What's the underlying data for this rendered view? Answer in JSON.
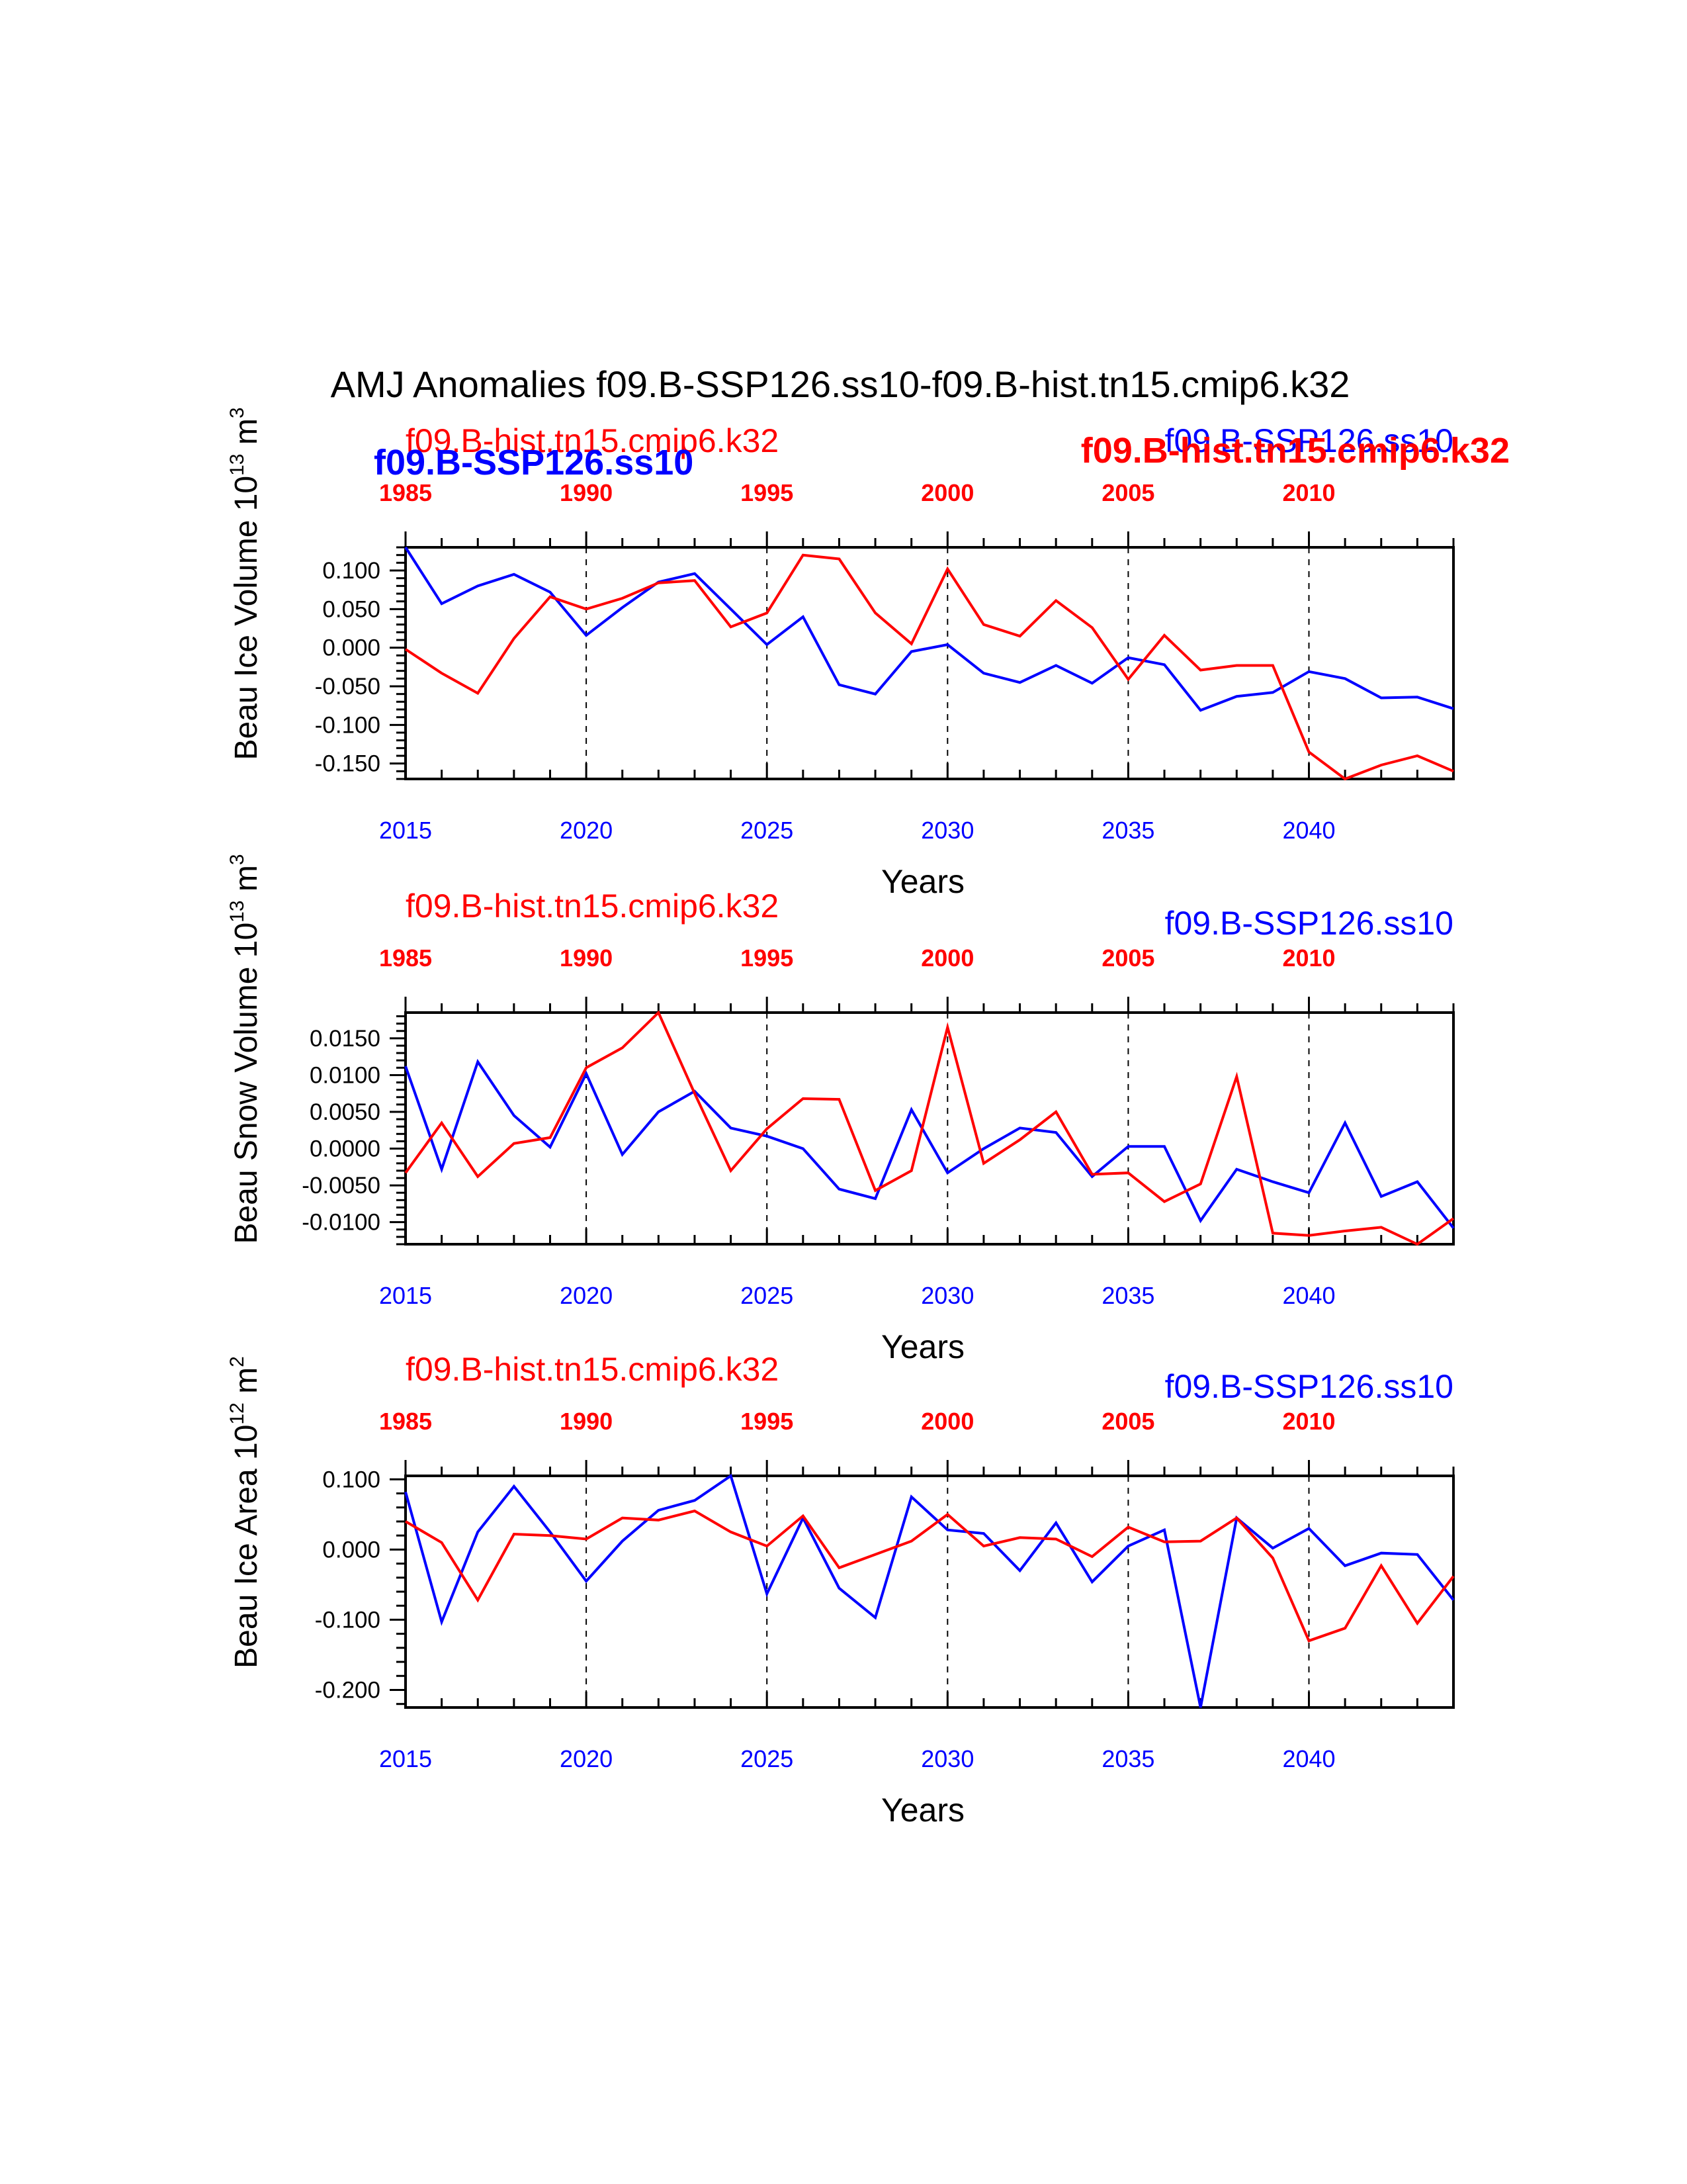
{
  "title": "AMJ Anomalies f09.B-SSP126.ss10-f09.B-hist.tn15.cmip6.k32",
  "colors": {
    "ssp": "#0000ff",
    "hist": "#ff0000",
    "axis": "#000000"
  },
  "xlabel": "Years",
  "bottom_axis": {
    "range": [
      2015,
      2044
    ],
    "ticks": [
      "2015",
      "2020",
      "2025",
      "2030",
      "2035",
      "2040"
    ]
  },
  "top_axis": {
    "ticks": [
      "1985",
      "1990",
      "1995",
      "2000",
      "2005",
      "2010"
    ]
  },
  "legend": {
    "hist": "f09.B-hist.tn15.cmip6.k32",
    "ssp": "f09.B-SSP126.ss10",
    "overlap_ssp": "f09.B-SSP126.ss10",
    "overlap_hist": "f09.B-hist.tn15.cmip6.k32"
  },
  "chart_data": [
    {
      "type": "line",
      "id": "ice-volume",
      "ylabel": "Beau Ice Volume 10",
      "ylabel_exp": "13",
      "ylabel_unit": "m",
      "ylabel_unit_exp": "3",
      "ylim": [
        -0.17,
        0.13
      ],
      "yticks": [
        "0.100",
        "0.050",
        "0.000",
        "-0.050",
        "-0.100",
        "-0.150"
      ],
      "ytick_values": [
        0.1,
        0.05,
        0.0,
        -0.05,
        -0.1,
        -0.15
      ],
      "series": [
        {
          "name": "f09.B-SSP126.ss10",
          "color": "#0000ff",
          "values": [
            0.13,
            0.057,
            0.08,
            0.095,
            0.072,
            0.016,
            0.052,
            0.085,
            0.096,
            0.05,
            0.004,
            0.04,
            -0.048,
            -0.06,
            -0.005,
            0.004,
            -0.033,
            -0.045,
            -0.023,
            -0.046,
            -0.013,
            -0.022,
            -0.081,
            -0.063,
            -0.058,
            -0.031,
            -0.04,
            -0.065,
            -0.064,
            -0.079
          ]
        },
        {
          "name": "f09.B-hist.tn15.cmip6.k32",
          "color": "#ff0000",
          "values": [
            -0.002,
            -0.033,
            -0.059,
            0.012,
            0.066,
            0.05,
            0.064,
            0.084,
            0.087,
            0.027,
            0.045,
            0.12,
            0.115,
            0.045,
            0.005,
            0.102,
            0.03,
            0.015,
            0.061,
            0.026,
            -0.041,
            0.016,
            -0.029,
            -0.023,
            -0.023,
            -0.135,
            -0.17,
            -0.152,
            -0.14,
            -0.16
          ]
        }
      ]
    },
    {
      "type": "line",
      "id": "snow-volume",
      "ylabel": "Beau Snow Volume 10",
      "ylabel_exp": "13",
      "ylabel_unit": "m",
      "ylabel_unit_exp": "3",
      "ylim": [
        -0.013,
        0.0185
      ],
      "yticks": [
        "0.0150",
        "0.0100",
        "0.0050",
        "0.0000",
        "-0.0050",
        "-0.0100"
      ],
      "ytick_values": [
        0.015,
        0.01,
        0.005,
        0.0,
        -0.005,
        -0.01
      ],
      "series": [
        {
          "name": "f09.B-SSP126.ss10",
          "color": "#0000ff",
          "values": [
            0.0112,
            -0.0028,
            0.0118,
            0.0045,
            0.0002,
            0.0102,
            -0.0008,
            0.005,
            0.0078,
            0.0028,
            0.0017,
            0.0,
            -0.0055,
            -0.0068,
            0.0053,
            -0.0033,
            0.0,
            0.0028,
            0.0022,
            -0.0038,
            0.0003,
            0.0003,
            -0.0098,
            -0.0028,
            -0.0045,
            -0.006,
            0.0035,
            -0.0065,
            -0.0045,
            -0.0108
          ]
        },
        {
          "name": "f09.B-hist.tn15.cmip6.k32",
          "color": "#ff0000",
          "values": [
            -0.0033,
            0.0035,
            -0.0038,
            0.0007,
            0.0015,
            0.011,
            0.0137,
            0.0185,
            0.0075,
            -0.003,
            0.0027,
            0.0068,
            0.0067,
            -0.0057,
            -0.003,
            0.0165,
            -0.002,
            0.0012,
            0.005,
            -0.0035,
            -0.0033,
            -0.0072,
            -0.0048,
            0.0098,
            -0.0115,
            -0.0118,
            -0.0112,
            -0.0107,
            -0.013,
            -0.0095
          ]
        }
      ]
    },
    {
      "type": "line",
      "id": "ice-area",
      "ylabel": "Beau Ice Area 10",
      "ylabel_exp": "12",
      "ylabel_unit": "m",
      "ylabel_unit_exp": "2",
      "ylim": [
        -0.225,
        0.105
      ],
      "yticks": [
        "0.100",
        "0.000",
        "-0.100",
        "-0.200"
      ],
      "ytick_values": [
        0.1,
        0.0,
        -0.1,
        -0.2
      ],
      "series": [
        {
          "name": "f09.B-SSP126.ss10",
          "color": "#0000ff",
          "values": [
            0.082,
            -0.103,
            0.025,
            0.09,
            0.025,
            -0.045,
            0.012,
            0.056,
            0.07,
            0.105,
            -0.063,
            0.045,
            -0.055,
            -0.097,
            0.075,
            0.028,
            0.023,
            -0.03,
            0.038,
            -0.046,
            0.005,
            0.028,
            -0.225,
            0.045,
            0.002,
            0.03,
            -0.023,
            -0.005,
            -0.007,
            -0.072
          ]
        },
        {
          "name": "f09.B-hist.tn15.cmip6.k32",
          "color": "#ff0000",
          "values": [
            0.04,
            0.01,
            -0.072,
            0.022,
            0.02,
            0.015,
            0.045,
            0.042,
            0.055,
            0.025,
            0.005,
            0.048,
            -0.026,
            -0.007,
            0.012,
            0.05,
            0.005,
            0.017,
            0.015,
            -0.01,
            0.032,
            0.011,
            0.012,
            0.045,
            -0.012,
            -0.13,
            -0.112,
            -0.023,
            -0.105,
            -0.038
          ]
        }
      ]
    }
  ]
}
